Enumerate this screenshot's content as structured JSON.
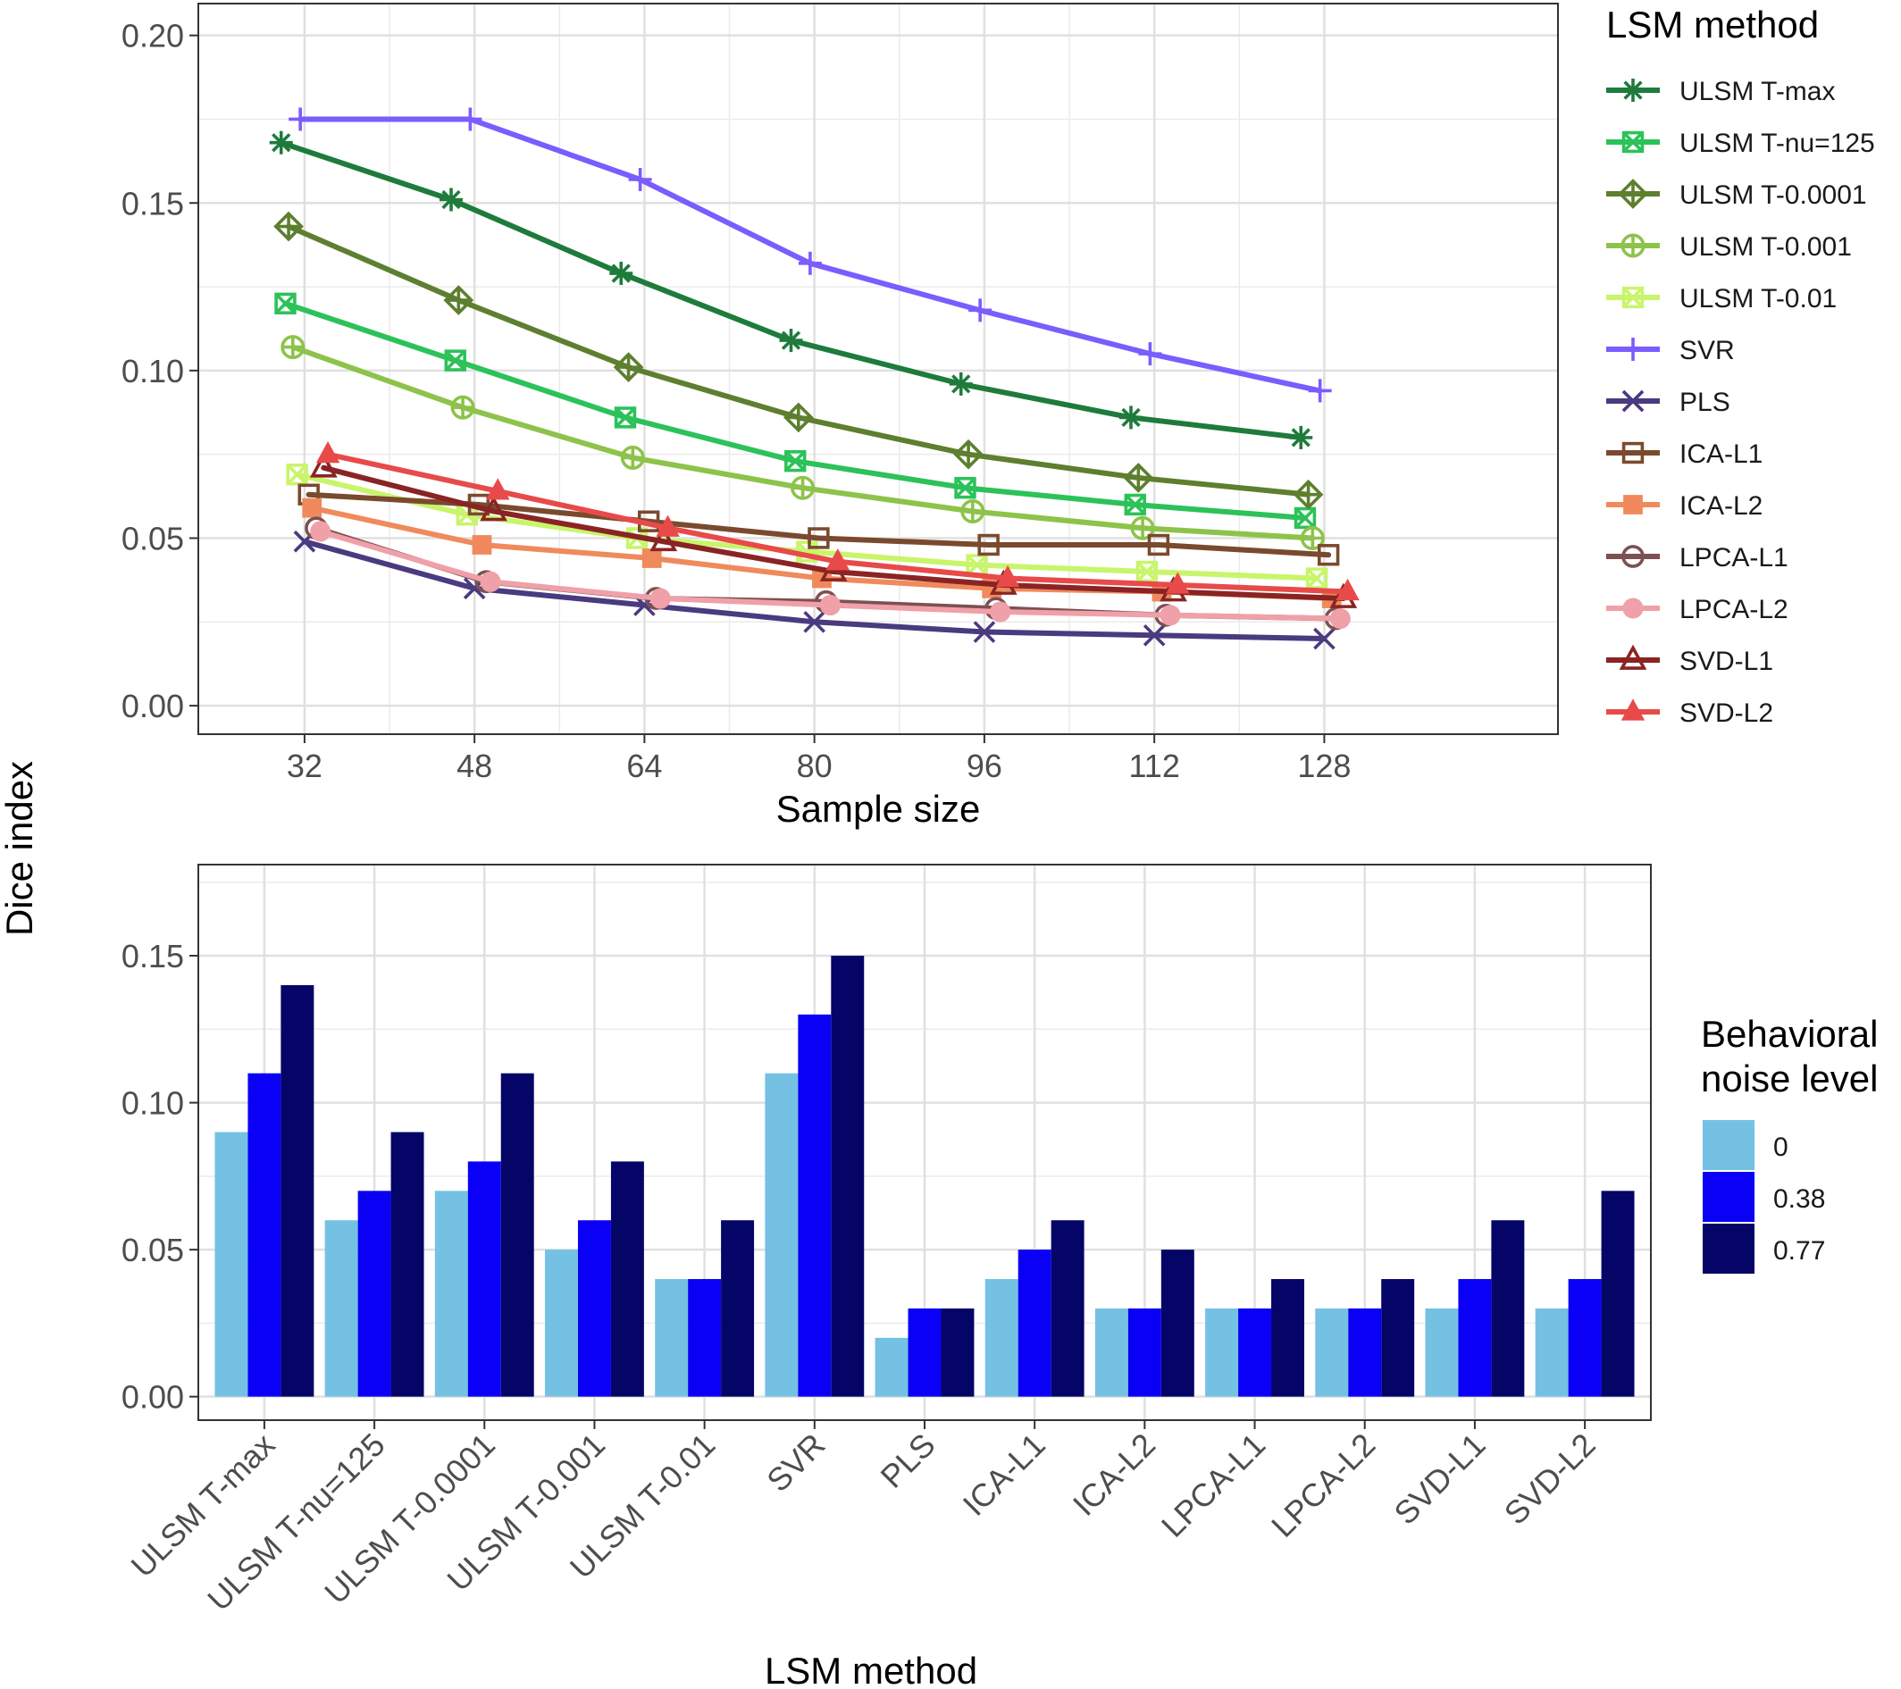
{
  "shared": {
    "ylabel": "Dice index"
  },
  "chart_data": [
    {
      "type": "line",
      "xlabel": "Sample size",
      "ylabel": "",
      "xlim": [
        22,
        150
      ],
      "ylim": [
        -0.0085,
        0.2095
      ],
      "x_ticks": [
        "32",
        "48",
        "64",
        "80",
        "96",
        "112",
        "128"
      ],
      "y_ticks": [
        "0.00",
        "0.05",
        "0.10",
        "0.15",
        "0.20"
      ],
      "grid": true,
      "legend_title": "LSM method",
      "legend_position": "right",
      "x": [
        32,
        48,
        64,
        80,
        96,
        112,
        128
      ],
      "series": [
        {
          "name": "ULSM T-max",
          "color": "#1e7b3c",
          "marker": "asterisk",
          "offset": -2.2,
          "values": [
            0.168,
            0.151,
            0.129,
            0.109,
            0.096,
            0.086,
            0.08
          ]
        },
        {
          "name": "ULSM T-nu=125",
          "color": "#2cc259",
          "marker": "square-x",
          "offset": -1.8,
          "values": [
            0.12,
            0.103,
            0.086,
            0.073,
            0.065,
            0.06,
            0.056
          ]
        },
        {
          "name": "ULSM T-0.0001",
          "color": "#5d7f2f",
          "marker": "diamond-plus",
          "offset": -1.5,
          "values": [
            0.143,
            0.121,
            0.101,
            0.086,
            0.075,
            0.068,
            0.063
          ]
        },
        {
          "name": "ULSM T-0.001",
          "color": "#8dc34a",
          "marker": "circle-plus",
          "offset": -1.1,
          "values": [
            0.107,
            0.089,
            0.074,
            0.065,
            0.058,
            0.053,
            0.05
          ]
        },
        {
          "name": "ULSM T-0.01",
          "color": "#c8f56a",
          "marker": "square-cross",
          "offset": -0.7,
          "values": [
            0.069,
            0.057,
            0.05,
            0.046,
            0.042,
            0.04,
            0.038
          ]
        },
        {
          "name": "SVR",
          "color": "#7a5cff",
          "marker": "plus",
          "offset": -0.4,
          "values": [
            0.175,
            0.175,
            0.157,
            0.132,
            0.118,
            0.105,
            0.094
          ]
        },
        {
          "name": "PLS",
          "color": "#4a3a80",
          "marker": "cross",
          "offset": 0.0,
          "values": [
            0.049,
            0.035,
            0.03,
            0.025,
            0.022,
            0.021,
            0.02
          ]
        },
        {
          "name": "ICA-L1",
          "color": "#7a4a2e",
          "marker": "square",
          "offset": 0.4,
          "values": [
            0.063,
            0.06,
            0.055,
            0.05,
            0.048,
            0.048,
            0.045
          ]
        },
        {
          "name": "ICA-L2",
          "color": "#f08a5d",
          "marker": "square-filled",
          "offset": 0.7,
          "values": [
            0.059,
            0.048,
            0.044,
            0.038,
            0.035,
            0.034,
            0.032
          ]
        },
        {
          "name": "LPCA-L1",
          "color": "#7d5052",
          "marker": "circle",
          "offset": 1.1,
          "values": [
            0.053,
            0.037,
            0.032,
            0.031,
            0.029,
            0.027,
            0.026
          ]
        },
        {
          "name": "LPCA-L2",
          "color": "#f0a0a8",
          "marker": "circle-filled",
          "offset": 1.5,
          "values": [
            0.052,
            0.037,
            0.032,
            0.03,
            0.028,
            0.027,
            0.026
          ]
        },
        {
          "name": "SVD-L1",
          "color": "#8a2424",
          "marker": "triangle",
          "offset": 1.8,
          "values": [
            0.071,
            0.058,
            0.049,
            0.04,
            0.036,
            0.034,
            0.032
          ]
        },
        {
          "name": "SVD-L2",
          "color": "#e84a4a",
          "marker": "triangle-filled",
          "offset": 2.2,
          "values": [
            0.075,
            0.064,
            0.053,
            0.043,
            0.038,
            0.036,
            0.034
          ]
        }
      ]
    },
    {
      "type": "bar",
      "xlabel": "LSM method",
      "ylabel": "",
      "ylim": [
        -0.008,
        0.181
      ],
      "y_ticks": [
        "0.00",
        "0.05",
        "0.10",
        "0.15"
      ],
      "grid": true,
      "legend_title_lines": [
        "Behavioral",
        "noise level"
      ],
      "legend_position": "right",
      "categories": [
        "ULSM T-max",
        "ULSM T-nu=125",
        "ULSM T-0.0001",
        "ULSM T-0.001",
        "ULSM T-0.01",
        "SVR",
        "PLS",
        "ICA-L1",
        "ICA-L2",
        "LPCA-L1",
        "LPCA-L2",
        "SVD-L1",
        "SVD-L2"
      ],
      "series": [
        {
          "name": "0",
          "color": "#74c1e4",
          "values": [
            0.09,
            0.06,
            0.07,
            0.05,
            0.04,
            0.11,
            0.02,
            0.04,
            0.03,
            0.03,
            0.03,
            0.03,
            0.03
          ]
        },
        {
          "name": "0.38",
          "color": "#0a00f5",
          "values": [
            0.11,
            0.07,
            0.08,
            0.06,
            0.04,
            0.13,
            0.03,
            0.05,
            0.03,
            0.03,
            0.03,
            0.04,
            0.04
          ]
        },
        {
          "name": "0.77",
          "color": "#050567",
          "values": [
            0.14,
            0.09,
            0.11,
            0.08,
            0.06,
            0.15,
            0.03,
            0.06,
            0.05,
            0.04,
            0.04,
            0.06,
            0.07
          ]
        }
      ]
    }
  ]
}
